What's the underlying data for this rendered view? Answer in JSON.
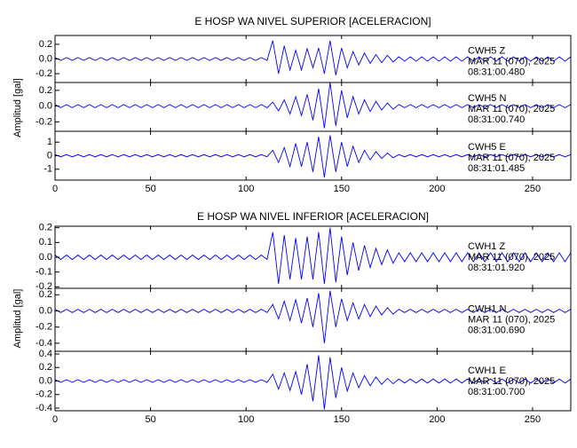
{
  "chart_data": [
    {
      "type": "line",
      "title": "E HOSP WA NIVEL SUPERIOR [ACELERACION]",
      "ylabel": "Amplitud [gal]",
      "xlim": [
        0,
        270
      ],
      "xticks": [
        0,
        50,
        100,
        150,
        200,
        250
      ],
      "x": [
        0,
        3,
        6,
        9,
        12,
        15,
        18,
        21,
        24,
        27,
        30,
        33,
        36,
        39,
        42,
        45,
        48,
        51,
        54,
        57,
        60,
        63,
        66,
        69,
        72,
        75,
        78,
        81,
        84,
        87,
        90,
        93,
        96,
        99,
        102,
        105,
        108,
        111,
        114,
        117,
        120,
        123,
        126,
        129,
        132,
        135,
        138,
        141,
        144,
        147,
        150,
        153,
        156,
        159,
        162,
        165,
        168,
        171,
        174,
        177,
        180,
        183,
        186,
        189,
        192,
        195,
        198,
        201,
        204,
        207,
        210,
        213,
        216,
        219,
        222,
        225,
        228,
        231,
        234,
        237,
        240,
        243,
        246,
        249,
        252,
        255,
        258,
        261,
        264,
        267,
        270
      ],
      "series": [
        {
          "name": "CWH5 Z",
          "date": "MAR 11 (070), 2025",
          "time": "08:31:00.480",
          "color": "#0000ff",
          "ylim": [
            -0.32,
            0.32
          ],
          "yticks": [
            -0.2,
            {
              "value": 0,
              "label": "0.0"
            },
            0.2
          ],
          "values": [
            0.02,
            -0.02,
            0.02,
            -0.02,
            0.02,
            -0.02,
            0.02,
            -0.02,
            0.02,
            -0.02,
            0.02,
            -0.02,
            0.02,
            -0.02,
            0.02,
            -0.02,
            0.02,
            -0.02,
            0.02,
            -0.02,
            0.02,
            -0.02,
            0.02,
            -0.02,
            0.02,
            -0.02,
            0.02,
            -0.02,
            0.02,
            -0.02,
            0.02,
            -0.02,
            0.02,
            -0.02,
            0.02,
            -0.02,
            0.02,
            -0.02,
            0.25,
            -0.2,
            0.18,
            -0.15,
            0.12,
            -0.15,
            0.14,
            -0.12,
            0.15,
            -0.2,
            0.25,
            -0.22,
            0.15,
            -0.12,
            0.1,
            -0.08,
            0.08,
            -0.06,
            0.06,
            -0.05,
            0.05,
            -0.04,
            0.03,
            -0.03,
            0.03,
            -0.03,
            0.03,
            -0.03,
            0.03,
            -0.03,
            0.03,
            -0.03,
            0.03,
            -0.03,
            0.03,
            -0.03,
            0.03,
            -0.03,
            0.03,
            -0.03,
            0.03,
            -0.03,
            0.03,
            -0.03,
            0.03,
            -0.03,
            0.03,
            -0.03,
            0.03,
            -0.03,
            0.03,
            -0.03,
            0.03
          ]
        },
        {
          "name": "CWH5 N",
          "date": "MAR 11 (070), 2025",
          "time": "08:31:00.740",
          "color": "#0000ff",
          "ylim": [
            -0.32,
            0.3
          ],
          "yticks": [
            -0.2,
            {
              "value": 0,
              "label": "0.0"
            },
            0.2
          ],
          "values": [
            0.02,
            -0.02,
            0.02,
            -0.02,
            0.02,
            -0.02,
            0.02,
            -0.02,
            0.02,
            -0.02,
            0.02,
            -0.02,
            0.02,
            -0.02,
            0.02,
            -0.02,
            0.02,
            -0.02,
            0.02,
            -0.02,
            0.02,
            -0.02,
            0.02,
            -0.02,
            0.02,
            -0.02,
            0.02,
            -0.02,
            0.02,
            -0.02,
            0.02,
            -0.02,
            0.02,
            -0.02,
            0.02,
            -0.02,
            0.02,
            -0.02,
            0.05,
            -0.06,
            0.08,
            -0.1,
            0.12,
            -0.12,
            0.15,
            -0.18,
            0.22,
            -0.28,
            0.3,
            -0.25,
            0.2,
            -0.15,
            0.12,
            -0.1,
            0.08,
            -0.07,
            0.06,
            -0.05,
            0.04,
            -0.04,
            0.02,
            -0.02,
            0.02,
            -0.02,
            0.02,
            -0.02,
            0.02,
            -0.02,
            0.02,
            -0.02,
            0.02,
            -0.02,
            0.02,
            -0.02,
            0.02,
            -0.02,
            0.02,
            -0.02,
            0.02,
            -0.02,
            0.02,
            -0.02,
            0.02,
            -0.02,
            0.02,
            -0.02,
            0.02,
            -0.02,
            0.02,
            -0.02,
            0.02
          ]
        },
        {
          "name": "CWH5 E",
          "date": "MAR 11 (070), 2025",
          "time": "08:31:01.485",
          "color": "#0000ff",
          "ylim": [
            -1.8,
            1.8
          ],
          "yticks": [
            -1,
            0,
            1
          ],
          "values": [
            0.08,
            -0.08,
            0.08,
            -0.08,
            0.08,
            -0.08,
            0.08,
            -0.08,
            0.08,
            -0.08,
            0.08,
            -0.08,
            0.08,
            -0.08,
            0.08,
            -0.08,
            0.08,
            -0.08,
            0.08,
            -0.08,
            0.08,
            -0.08,
            0.08,
            -0.08,
            0.08,
            -0.08,
            0.08,
            -0.08,
            0.08,
            -0.08,
            0.08,
            -0.08,
            0.08,
            -0.08,
            0.08,
            -0.08,
            0.08,
            -0.08,
            0.4,
            -0.5,
            0.6,
            -0.8,
            0.9,
            -0.8,
            1.0,
            -1.2,
            1.4,
            -1.6,
            1.5,
            -1.2,
            1.0,
            -0.8,
            0.7,
            -0.5,
            0.4,
            -0.3,
            0.3,
            -0.2,
            0.2,
            -0.15,
            0.08,
            -0.08,
            0.08,
            -0.08,
            0.08,
            -0.08,
            0.08,
            -0.08,
            0.08,
            -0.08,
            0.08,
            -0.08,
            0.08,
            -0.08,
            0.08,
            -0.08,
            0.08,
            -0.08,
            0.08,
            -0.08,
            0.08,
            -0.08,
            0.08,
            -0.08,
            0.08,
            -0.08,
            0.08,
            -0.08,
            0.08,
            -0.08,
            0.08
          ]
        }
      ]
    },
    {
      "type": "line",
      "title": "E HOSP WA NIVEL INFERIOR [ACELERACION]",
      "ylabel": "Amplitud [gal]",
      "xlim": [
        0,
        270
      ],
      "xticks": [
        0,
        50,
        100,
        150,
        200,
        250
      ],
      "x": [
        0,
        3,
        6,
        9,
        12,
        15,
        18,
        21,
        24,
        27,
        30,
        33,
        36,
        39,
        42,
        45,
        48,
        51,
        54,
        57,
        60,
        63,
        66,
        69,
        72,
        75,
        78,
        81,
        84,
        87,
        90,
        93,
        96,
        99,
        102,
        105,
        108,
        111,
        114,
        117,
        120,
        123,
        126,
        129,
        132,
        135,
        138,
        141,
        144,
        147,
        150,
        153,
        156,
        159,
        162,
        165,
        168,
        171,
        174,
        177,
        180,
        183,
        186,
        189,
        192,
        195,
        198,
        201,
        204,
        207,
        210,
        213,
        216,
        219,
        222,
        225,
        228,
        231,
        234,
        237,
        240,
        243,
        246,
        249,
        252,
        255,
        258,
        261,
        264,
        267,
        270
      ],
      "series": [
        {
          "name": "CWH1 Z",
          "date": "MAR 11 (070), 2025",
          "time": "08:31:01.920",
          "color": "#0000ff",
          "ylim": [
            -0.21,
            0.21
          ],
          "yticks": [
            -0.2,
            -0.1,
            {
              "value": 0,
              "label": "0.0"
            },
            0.1,
            0.2
          ],
          "values": [
            0.015,
            -0.015,
            0.015,
            -0.015,
            0.015,
            -0.015,
            0.015,
            -0.015,
            0.015,
            -0.015,
            0.015,
            -0.015,
            0.015,
            -0.015,
            0.015,
            -0.015,
            0.015,
            -0.015,
            0.015,
            -0.015,
            0.015,
            -0.015,
            0.015,
            -0.015,
            0.015,
            -0.015,
            0.015,
            -0.015,
            0.015,
            -0.015,
            0.015,
            -0.015,
            0.015,
            -0.015,
            0.015,
            -0.015,
            0.015,
            -0.015,
            0.17,
            -0.18,
            0.15,
            -0.15,
            0.13,
            -0.15,
            0.14,
            -0.15,
            0.17,
            -0.18,
            0.2,
            -0.17,
            0.14,
            -0.12,
            0.1,
            -0.09,
            0.08,
            -0.07,
            0.06,
            -0.05,
            0.05,
            -0.04,
            0.03,
            -0.03,
            0.03,
            -0.03,
            0.03,
            -0.03,
            0.03,
            -0.03,
            0.03,
            -0.03,
            0.03,
            -0.03,
            0.03,
            -0.03,
            0.03,
            -0.03,
            0.03,
            -0.03,
            0.03,
            -0.03,
            0.03,
            -0.03,
            0.03,
            -0.03,
            0.03,
            -0.03,
            0.03,
            -0.03,
            0.03,
            -0.03,
            0.03
          ]
        },
        {
          "name": "CWH1 N",
          "date": "MAR 11 (070), 2025",
          "time": "08:31:00.690",
          "color": "#0000ff",
          "ylim": [
            -0.5,
            0.28
          ],
          "yticks": [
            -0.4,
            -0.2,
            {
              "value": 0,
              "label": "0.0"
            },
            0.2
          ],
          "values": [
            0.02,
            -0.02,
            0.02,
            -0.02,
            0.02,
            -0.02,
            0.02,
            -0.02,
            0.02,
            -0.02,
            0.02,
            -0.02,
            0.02,
            -0.02,
            0.02,
            -0.02,
            0.02,
            -0.02,
            0.02,
            -0.02,
            0.02,
            -0.02,
            0.02,
            -0.02,
            0.02,
            -0.02,
            0.02,
            -0.02,
            0.02,
            -0.02,
            0.02,
            -0.02,
            0.02,
            -0.02,
            0.02,
            -0.02,
            0.02,
            -0.02,
            0.08,
            -0.1,
            0.12,
            -0.12,
            0.14,
            -0.15,
            0.16,
            -0.2,
            0.22,
            -0.4,
            0.25,
            -0.2,
            0.15,
            -0.12,
            0.1,
            -0.1,
            0.08,
            -0.07,
            0.06,
            -0.05,
            0.04,
            -0.04,
            0.02,
            -0.02,
            0.02,
            -0.02,
            0.02,
            -0.02,
            0.02,
            -0.02,
            0.02,
            -0.02,
            0.02,
            -0.02,
            0.02,
            -0.02,
            0.02,
            -0.02,
            0.02,
            -0.02,
            0.02,
            -0.02,
            0.02,
            -0.02,
            0.02,
            -0.02,
            0.02,
            -0.02,
            0.02,
            -0.02,
            0.02,
            -0.02,
            0.02
          ]
        },
        {
          "name": "CWH1 E",
          "date": "MAR 11 (070), 2025",
          "time": "08:31:00.700",
          "color": "#0000ff",
          "ylim": [
            -0.44,
            0.44
          ],
          "yticks": [
            -0.4,
            -0.2,
            {
              "value": 0,
              "label": "0.0"
            },
            0.2,
            0.4
          ],
          "values": [
            0.02,
            -0.02,
            0.02,
            -0.02,
            0.02,
            -0.02,
            0.02,
            -0.02,
            0.02,
            -0.02,
            0.02,
            -0.02,
            0.02,
            -0.02,
            0.02,
            -0.02,
            0.02,
            -0.02,
            0.02,
            -0.02,
            0.02,
            -0.02,
            0.02,
            -0.02,
            0.02,
            -0.02,
            0.02,
            -0.02,
            0.02,
            -0.02,
            0.02,
            -0.02,
            0.02,
            -0.02,
            0.02,
            -0.02,
            0.02,
            -0.02,
            0.1,
            -0.12,
            0.12,
            -0.14,
            0.14,
            -0.2,
            0.25,
            -0.3,
            0.38,
            -0.42,
            0.35,
            -0.25,
            0.2,
            -0.15,
            0.12,
            -0.1,
            0.08,
            -0.07,
            0.06,
            -0.05,
            0.04,
            -0.04,
            0.03,
            -0.03,
            0.03,
            -0.03,
            0.03,
            -0.03,
            0.03,
            -0.03,
            0.03,
            -0.03,
            0.03,
            -0.03,
            0.03,
            -0.03,
            0.03,
            -0.03,
            0.03,
            -0.03,
            0.03,
            -0.03,
            0.03,
            -0.03,
            0.03,
            -0.03,
            0.03,
            -0.03,
            0.03,
            -0.03,
            0.03,
            -0.03,
            0.03
          ]
        }
      ]
    }
  ]
}
